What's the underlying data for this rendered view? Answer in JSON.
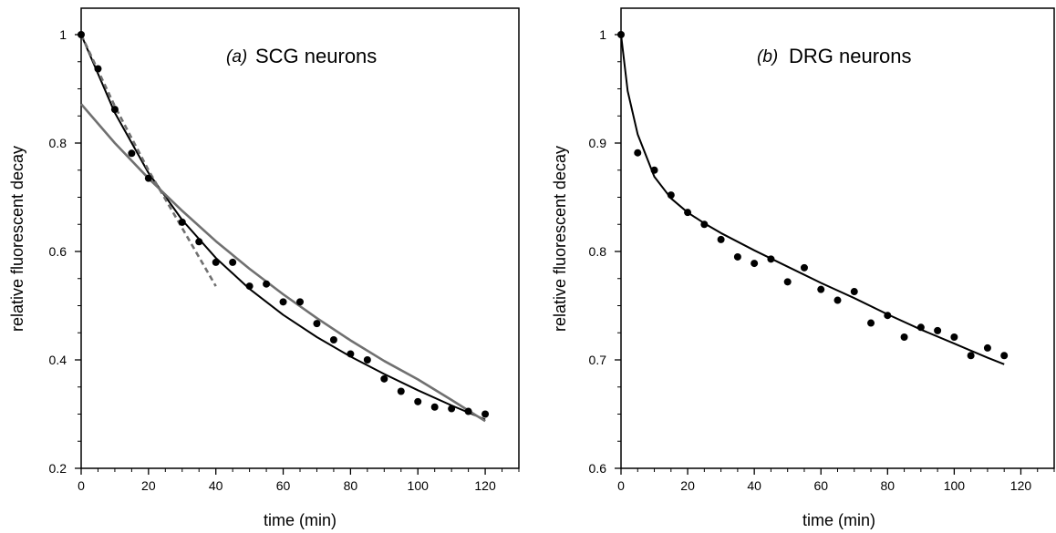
{
  "chart_data": [
    {
      "type": "scatter",
      "panel_label": "(a)",
      "title": "SCG neurons",
      "xlabel": "time (min)",
      "ylabel": "relative fluorescent decay",
      "xlim": [
        0,
        130
      ],
      "ylim": [
        0.2,
        1.05
      ],
      "xticks": [
        0,
        20,
        40,
        60,
        80,
        100,
        120
      ],
      "yticks": [
        0.2,
        0.4,
        0.6,
        0.8,
        1
      ],
      "xtick_labels": [
        "0",
        "20",
        "40",
        "60",
        "80",
        "100",
        "120"
      ],
      "ytick_labels": [
        "0.2",
        "0.4",
        "0.6",
        "0.8",
        "1"
      ],
      "grid": false,
      "legend": "none",
      "series": [
        {
          "kind": "points",
          "color": "#000000",
          "x": [
            0,
            5,
            10,
            15,
            20,
            30,
            35,
            40,
            45,
            50,
            55,
            60,
            65,
            70,
            75,
            80,
            85,
            90,
            95,
            100,
            105,
            110,
            115,
            120
          ],
          "y": [
            1.0,
            0.937,
            0.862,
            0.781,
            0.735,
            0.654,
            0.618,
            0.58,
            0.58,
            0.536,
            0.54,
            0.507,
            0.507,
            0.467,
            0.437,
            0.411,
            0.4,
            0.365,
            0.342,
            0.323,
            0.313,
            0.31,
            0.305,
            0.3
          ]
        },
        {
          "kind": "line",
          "style": "solid",
          "color": "#000000",
          "x": [
            0,
            10,
            20,
            30,
            40,
            50,
            60,
            70,
            80,
            90,
            100,
            110,
            120
          ],
          "y": [
            1.0,
            0.856,
            0.745,
            0.658,
            0.588,
            0.531,
            0.483,
            0.442,
            0.406,
            0.374,
            0.344,
            0.316,
            0.29
          ]
        },
        {
          "kind": "line",
          "style": "solid",
          "color": "#707070",
          "x": [
            0,
            10,
            20,
            30,
            40,
            50,
            60,
            70,
            80,
            90,
            100,
            110,
            120
          ],
          "y": [
            0.872,
            0.8,
            0.735,
            0.675,
            0.619,
            0.568,
            0.521,
            0.477,
            0.436,
            0.398,
            0.364,
            0.326,
            0.287
          ]
        },
        {
          "kind": "line",
          "style": "dashed",
          "color": "#707070",
          "x": [
            0,
            10,
            20,
            30,
            40
          ],
          "y": [
            1.0,
            0.868,
            0.75,
            0.643,
            0.536
          ]
        }
      ]
    },
    {
      "type": "scatter",
      "panel_label": "(b)",
      "title": "DRG neurons",
      "xlabel": "time (min)",
      "ylabel": "relative fluorescent decay",
      "xlim": [
        0,
        130
      ],
      "ylim": [
        0.6,
        1.025
      ],
      "xticks": [
        0,
        20,
        40,
        60,
        80,
        100,
        120
      ],
      "yticks": [
        0.6,
        0.7,
        0.8,
        0.9,
        1
      ],
      "xtick_labels": [
        "0",
        "20",
        "40",
        "60",
        "80",
        "100",
        "120"
      ],
      "ytick_labels": [
        "0.6",
        "0.7",
        "0.8",
        "0.9",
        "1"
      ],
      "grid": false,
      "legend": "none",
      "series": [
        {
          "kind": "points",
          "color": "#000000",
          "x": [
            0,
            5,
            10,
            15,
            20,
            25,
            30,
            35,
            40,
            45,
            50,
            55,
            60,
            65,
            70,
            75,
            80,
            85,
            90,
            95,
            100,
            105,
            110,
            115
          ],
          "y": [
            1.0,
            0.891,
            0.875,
            0.852,
            0.836,
            0.825,
            0.811,
            0.795,
            0.789,
            0.793,
            0.772,
            0.785,
            0.765,
            0.755,
            0.763,
            0.734,
            0.741,
            0.721,
            0.73,
            0.727,
            0.721,
            0.704,
            0.711,
            0.704
          ]
        },
        {
          "kind": "line",
          "style": "solid",
          "color": "#000000",
          "x": [
            0,
            2,
            5,
            10,
            15,
            20,
            25,
            30,
            40,
            50,
            60,
            70,
            80,
            90,
            100,
            110,
            115
          ],
          "y": [
            1.0,
            0.948,
            0.908,
            0.869,
            0.849,
            0.836,
            0.826,
            0.817,
            0.801,
            0.786,
            0.771,
            0.757,
            0.742,
            0.728,
            0.715,
            0.702,
            0.696
          ]
        }
      ]
    }
  ]
}
